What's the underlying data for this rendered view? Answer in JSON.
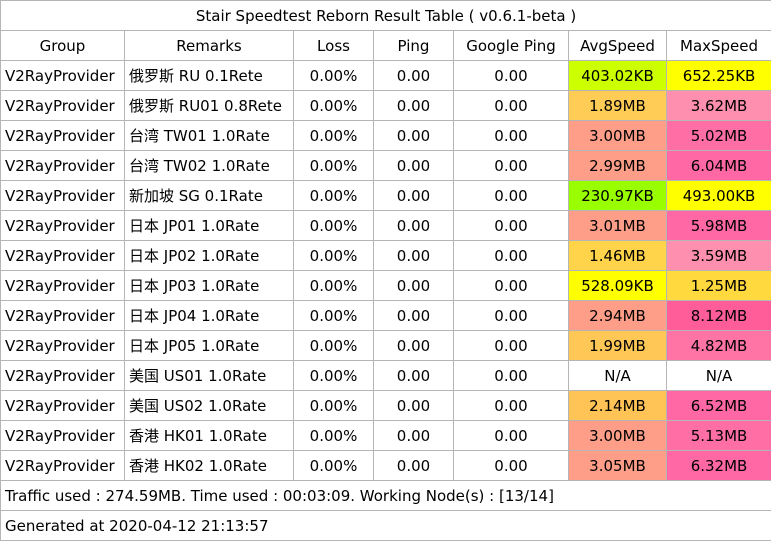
{
  "title": "Stair Speedtest Reborn Result Table ( v0.6.1-beta )",
  "headers": [
    "Group",
    "Remarks",
    "Loss",
    "Ping",
    "Google Ping",
    "AvgSpeed",
    "MaxSpeed"
  ],
  "rows": [
    {
      "group": "V2RayProvider",
      "remarks": "俄罗斯 RU 0.1Rete",
      "loss": "0.00%",
      "ping": "0.00",
      "google_ping": "0.00",
      "avg": "403.02KB",
      "max": "652.25KB",
      "avg_color": "#ccff00",
      "max_color": "#ffff00"
    },
    {
      "group": "V2RayProvider",
      "remarks": "俄罗斯 RU01 0.8Rete",
      "loss": "0.00%",
      "ping": "0.00",
      "google_ping": "0.00",
      "avg": "1.89MB",
      "max": "3.62MB",
      "avg_color": "#ffcc55",
      "max_color": "#ff8fae"
    },
    {
      "group": "V2RayProvider",
      "remarks": "台湾 TW01 1.0Rate",
      "loss": "0.00%",
      "ping": "0.00",
      "google_ping": "0.00",
      "avg": "3.00MB",
      "max": "5.02MB",
      "avg_color": "#ff9e88",
      "max_color": "#ff6ea5"
    },
    {
      "group": "V2RayProvider",
      "remarks": "台湾 TW02 1.0Rate",
      "loss": "0.00%",
      "ping": "0.00",
      "google_ping": "0.00",
      "avg": "2.99MB",
      "max": "6.04MB",
      "avg_color": "#ff9e88",
      "max_color": "#ff68a5"
    },
    {
      "group": "V2RayProvider",
      "remarks": "新加坡 SG 0.1Rate",
      "loss": "0.00%",
      "ping": "0.00",
      "google_ping": "0.00",
      "avg": "230.97KB",
      "max": "493.00KB",
      "avg_color": "#99ff00",
      "max_color": "#ffff00"
    },
    {
      "group": "V2RayProvider",
      "remarks": "日本 JP01 1.0Rate",
      "loss": "0.00%",
      "ping": "0.00",
      "google_ping": "0.00",
      "avg": "3.01MB",
      "max": "5.98MB",
      "avg_color": "#ff9e88",
      "max_color": "#ff68a5"
    },
    {
      "group": "V2RayProvider",
      "remarks": "日本 JP02 1.0Rate",
      "loss": "0.00%",
      "ping": "0.00",
      "google_ping": "0.00",
      "avg": "1.46MB",
      "max": "3.59MB",
      "avg_color": "#ffd34a",
      "max_color": "#ff8fae"
    },
    {
      "group": "V2RayProvider",
      "remarks": "日本 JP03 1.0Rate",
      "loss": "0.00%",
      "ping": "0.00",
      "google_ping": "0.00",
      "avg": "528.09KB",
      "max": "1.25MB",
      "avg_color": "#ffff00",
      "max_color": "#ffd93e"
    },
    {
      "group": "V2RayProvider",
      "remarks": "日本 JP04 1.0Rate",
      "loss": "0.00%",
      "ping": "0.00",
      "google_ping": "0.00",
      "avg": "2.94MB",
      "max": "8.12MB",
      "avg_color": "#ff9e88",
      "max_color": "#ff5c9a"
    },
    {
      "group": "V2RayProvider",
      "remarks": "日本 JP05 1.0Rate",
      "loss": "0.00%",
      "ping": "0.00",
      "google_ping": "0.00",
      "avg": "1.99MB",
      "max": "4.82MB",
      "avg_color": "#ffc755",
      "max_color": "#ff73a5"
    },
    {
      "group": "V2RayProvider",
      "remarks": "美国 US01 1.0Rate",
      "loss": "0.00%",
      "ping": "0.00",
      "google_ping": "0.00",
      "avg": "N/A",
      "max": "N/A",
      "avg_color": "#ffffff",
      "max_color": "#ffffff"
    },
    {
      "group": "V2RayProvider",
      "remarks": "美国 US02 1.0Rate",
      "loss": "0.00%",
      "ping": "0.00",
      "google_ping": "0.00",
      "avg": "2.14MB",
      "max": "6.52MB",
      "avg_color": "#ffc455",
      "max_color": "#ff68a5"
    },
    {
      "group": "V2RayProvider",
      "remarks": "香港 HK01 1.0Rate",
      "loss": "0.00%",
      "ping": "0.00",
      "google_ping": "0.00",
      "avg": "3.00MB",
      "max": "5.13MB",
      "avg_color": "#ff9e88",
      "max_color": "#ff6ea5"
    },
    {
      "group": "V2RayProvider",
      "remarks": "香港 HK02 1.0Rate",
      "loss": "0.00%",
      "ping": "0.00",
      "google_ping": "0.00",
      "avg": "3.05MB",
      "max": "6.32MB",
      "avg_color": "#ff9e88",
      "max_color": "#ff68a5"
    }
  ],
  "traffic_line": "Traffic used : 274.59MB. Time used : 00:03:09. Working Node(s) : [13/14]",
  "generated_line": "Generated at 2020-04-12 21:13:57"
}
